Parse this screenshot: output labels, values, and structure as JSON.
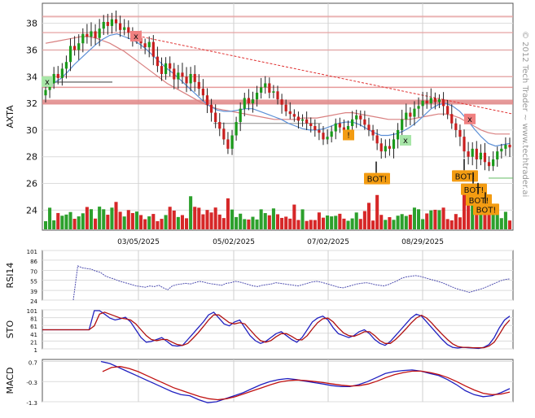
{
  "chart_data": [
    {
      "type": "candlestick",
      "ylabel": "AXTA",
      "ylim": [
        22.5,
        39.5
      ],
      "yticks": [
        24,
        26,
        28,
        30,
        32,
        34,
        36,
        38
      ],
      "xticks": [
        "03/05/2025",
        "05/02/2025",
        "07/02/2025",
        "08/29/2025"
      ],
      "grid": true,
      "watermark": "© 2012 Tech Trader ~ www.techtrader.ai",
      "close_series": [
        33.0,
        33.5,
        34.2,
        33.9,
        34.6,
        35.1,
        36.3,
        36.0,
        36.5,
        37.2,
        37.0,
        37.4,
        36.9,
        37.6,
        38.1,
        37.8,
        38.3,
        38.0,
        37.5,
        37.7,
        37.3,
        36.8,
        36.9,
        36.5,
        36.2,
        36.6,
        35.5,
        34.8,
        34.2,
        35.0,
        34.6,
        33.8,
        34.3,
        34.0,
        33.5,
        34.2,
        33.6,
        33.1,
        32.6,
        31.9,
        31.3,
        30.6,
        30.1,
        29.3,
        28.6,
        29.6,
        30.6,
        31.6,
        32.4,
        32.0,
        32.3,
        32.8,
        33.2,
        33.5,
        32.8,
        32.9,
        32.3,
        31.9,
        31.4,
        31.2,
        31.0,
        30.7,
        30.8,
        30.5,
        30.3,
        30.0,
        29.8,
        29.3,
        29.5,
        29.9,
        30.5,
        30.2,
        30.0,
        30.3,
        30.8,
        31.1,
        30.8,
        30.4,
        30.0,
        29.6,
        29.0,
        28.4,
        28.8,
        28.6,
        29.3,
        30.0,
        30.8,
        31.3,
        31.0,
        31.6,
        31.8,
        32.2,
        32.0,
        32.4,
        32.1,
        32.3,
        31.8,
        31.2,
        30.5,
        30.0,
        29.5,
        28.4,
        28.0,
        28.6,
        27.8,
        28.3,
        27.6,
        27.3,
        27.8,
        28.4,
        28.6,
        28.9,
        28.7
      ],
      "sma_short": [
        33.2,
        33.5,
        33.8,
        34.3,
        34.9,
        35.4,
        35.9,
        36.4,
        36.8,
        37.1,
        37.2,
        37.0,
        36.8,
        36.5,
        36.1,
        35.6,
        35.1,
        34.6,
        34.2,
        33.7,
        33.2,
        32.7,
        32.2,
        31.8,
        31.5,
        31.4,
        31.4,
        31.5,
        31.6,
        31.6,
        31.4,
        31.2,
        31.0,
        30.8,
        30.5,
        30.3,
        30.1,
        30.0,
        30.0,
        30.1,
        30.3,
        30.5,
        30.6,
        30.6,
        30.4,
        30.1,
        29.8,
        29.6,
        29.6,
        29.7,
        29.9,
        30.2,
        30.6,
        31.1,
        31.6,
        31.9,
        32.0,
        31.8,
        31.4,
        30.8,
        30.1,
        29.5,
        29.0,
        28.8,
        28.9,
        29.0
      ],
      "sma_long": [
        36.5,
        36.6,
        36.7,
        36.8,
        36.9,
        37.0,
        37.0,
        36.9,
        36.7,
        36.5,
        36.2,
        35.9,
        35.5,
        35.1,
        34.7,
        34.3,
        33.9,
        33.5,
        33.2,
        32.9,
        32.6,
        32.3,
        32.0,
        31.8,
        31.6,
        31.5,
        31.4,
        31.3,
        31.2,
        31.1,
        31.0,
        30.9,
        30.8,
        30.8,
        30.8,
        30.8,
        30.9,
        30.9,
        30.9,
        31.0,
        31.1,
        31.2,
        31.3,
        31.3,
        31.2,
        31.1,
        31.0,
        30.9,
        30.8,
        30.8,
        30.8,
        30.8,
        30.9,
        31.0,
        31.1,
        31.2,
        31.2,
        31.1,
        30.9,
        30.6,
        30.3,
        30.0,
        29.8,
        29.7,
        29.7,
        29.7
      ],
      "levels": [
        38.5,
        37.3,
        36.0,
        34.0,
        33.2,
        32.1
      ],
      "support_level": 33.6,
      "trendline": {
        "from": 37.1,
        "to": 31.2
      },
      "markers": [
        {
          "label": "x",
          "kind": "buy",
          "price": 33.6
        },
        {
          "label": "x",
          "kind": "sell",
          "price": 37.0
        },
        {
          "label": "!",
          "kind": "alert",
          "price": 29.6
        },
        {
          "label": "x",
          "kind": "buy",
          "price": 29.2
        },
        {
          "label": "x",
          "kind": "sell",
          "price": 30.8
        },
        {
          "label": "BOT!",
          "kind": "bot",
          "price": 26.3
        },
        {
          "label": "BOT!",
          "kind": "bot",
          "price": 26.5
        },
        {
          "label": "BOT!",
          "kind": "bot",
          "price": 25.5
        },
        {
          "label": "BOT!",
          "kind": "bot",
          "price": 24.7
        },
        {
          "label": "BOT!",
          "kind": "bot",
          "price": 24.0
        }
      ],
      "volume_note": "volume bars in lower band"
    },
    {
      "type": "line",
      "ylabel": "RSI14",
      "ylim": [
        24,
        101
      ],
      "yticks": [
        101,
        86,
        70,
        55,
        39,
        24
      ],
      "values": [
        24,
        77,
        74,
        73,
        72,
        69,
        67,
        62,
        59,
        57,
        54,
        52,
        50,
        48,
        46,
        45,
        44,
        46,
        45,
        47,
        43,
        40,
        46,
        48,
        49,
        50,
        49,
        51,
        53,
        52,
        50,
        49,
        48,
        47,
        50,
        51,
        53,
        52,
        50,
        48,
        46,
        45,
        47,
        48,
        49,
        51,
        50,
        49,
        48,
        47,
        46,
        48,
        50,
        52,
        53,
        52,
        50,
        48,
        46,
        44,
        43,
        45,
        47,
        49,
        50,
        51,
        50,
        48,
        47,
        46,
        48,
        51,
        54,
        58,
        60,
        61,
        62,
        61,
        59,
        57,
        55,
        53,
        51,
        48,
        45,
        42,
        40,
        38,
        36,
        38,
        40,
        42,
        45,
        48,
        51,
        54,
        56,
        57
      ]
    },
    {
      "type": "line",
      "ylabel": "STO",
      "ylim": [
        1,
        101
      ],
      "yticks": [
        101,
        81,
        61,
        41,
        21,
        1
      ],
      "series": [
        {
          "values": [
            50,
            50,
            50,
            50,
            50,
            50,
            50,
            50,
            50,
            50,
            99,
            99,
            90,
            80,
            75,
            78,
            82,
            70,
            50,
            30,
            18,
            20,
            25,
            30,
            20,
            10,
            8,
            10,
            25,
            40,
            55,
            70,
            88,
            95,
            80,
            65,
            60,
            70,
            75,
            55,
            35,
            22,
            15,
            20,
            30,
            40,
            45,
            35,
            25,
            18,
            30,
            50,
            70,
            80,
            85,
            75,
            55,
            40,
            35,
            30,
            35,
            45,
            50,
            40,
            25,
            15,
            10,
            20,
            35,
            50,
            65,
            80,
            90,
            85,
            70,
            55,
            40,
            25,
            12,
            5,
            3,
            5,
            4,
            3,
            2,
            5,
            12,
            30,
            55,
            75,
            85
          ]
        },
        {
          "values": [
            50,
            50,
            50,
            50,
            50,
            50,
            50,
            50,
            50,
            50,
            60,
            90,
            95,
            90,
            85,
            80,
            78,
            75,
            65,
            50,
            35,
            25,
            22,
            25,
            25,
            18,
            12,
            10,
            15,
            28,
            42,
            58,
            75,
            88,
            88,
            78,
            68,
            65,
            68,
            65,
            50,
            35,
            22,
            18,
            22,
            32,
            40,
            40,
            33,
            25,
            24,
            35,
            52,
            68,
            78,
            80,
            70,
            55,
            42,
            35,
            33,
            38,
            45,
            45,
            35,
            22,
            15,
            15,
            25,
            38,
            52,
            67,
            80,
            87,
            80,
            67,
            52,
            38,
            25,
            14,
            7,
            5,
            5,
            4,
            4,
            4,
            8,
            18,
            38,
            60,
            75
          ]
        }
      ]
    },
    {
      "type": "line",
      "ylabel": "MACD",
      "ylim": [
        -1.3,
        0.8
      ],
      "yticks": [
        0.7,
        -0.3,
        -1.3
      ],
      "series": [
        {
          "values": [
            0.7,
            0.6,
            0.4,
            0.2,
            0.0,
            -0.2,
            -0.4,
            -0.6,
            -0.8,
            -0.95,
            -1.0,
            -1.2,
            -1.35,
            -1.3,
            -1.15,
            -1.0,
            -0.85,
            -0.65,
            -0.45,
            -0.3,
            -0.2,
            -0.15,
            -0.2,
            -0.28,
            -0.35,
            -0.42,
            -0.5,
            -0.55,
            -0.55,
            -0.45,
            -0.3,
            -0.1,
            0.1,
            0.2,
            0.25,
            0.28,
            0.22,
            0.1,
            0.0,
            -0.2,
            -0.45,
            -0.75,
            -0.95,
            -1.05,
            -1.0,
            -0.85,
            -0.65
          ]
        },
        {
          "values": [
            0.2,
            0.4,
            0.45,
            0.35,
            0.2,
            0.0,
            -0.2,
            -0.4,
            -0.6,
            -0.75,
            -0.9,
            -1.05,
            -1.15,
            -1.2,
            -1.15,
            -1.05,
            -0.9,
            -0.75,
            -0.6,
            -0.45,
            -0.32,
            -0.25,
            -0.22,
            -0.25,
            -0.3,
            -0.35,
            -0.42,
            -0.48,
            -0.52,
            -0.5,
            -0.42,
            -0.28,
            -0.1,
            0.05,
            0.15,
            0.22,
            0.22,
            0.15,
            0.05,
            -0.1,
            -0.3,
            -0.52,
            -0.72,
            -0.88,
            -0.95,
            -0.92,
            -0.82
          ]
        }
      ]
    }
  ]
}
